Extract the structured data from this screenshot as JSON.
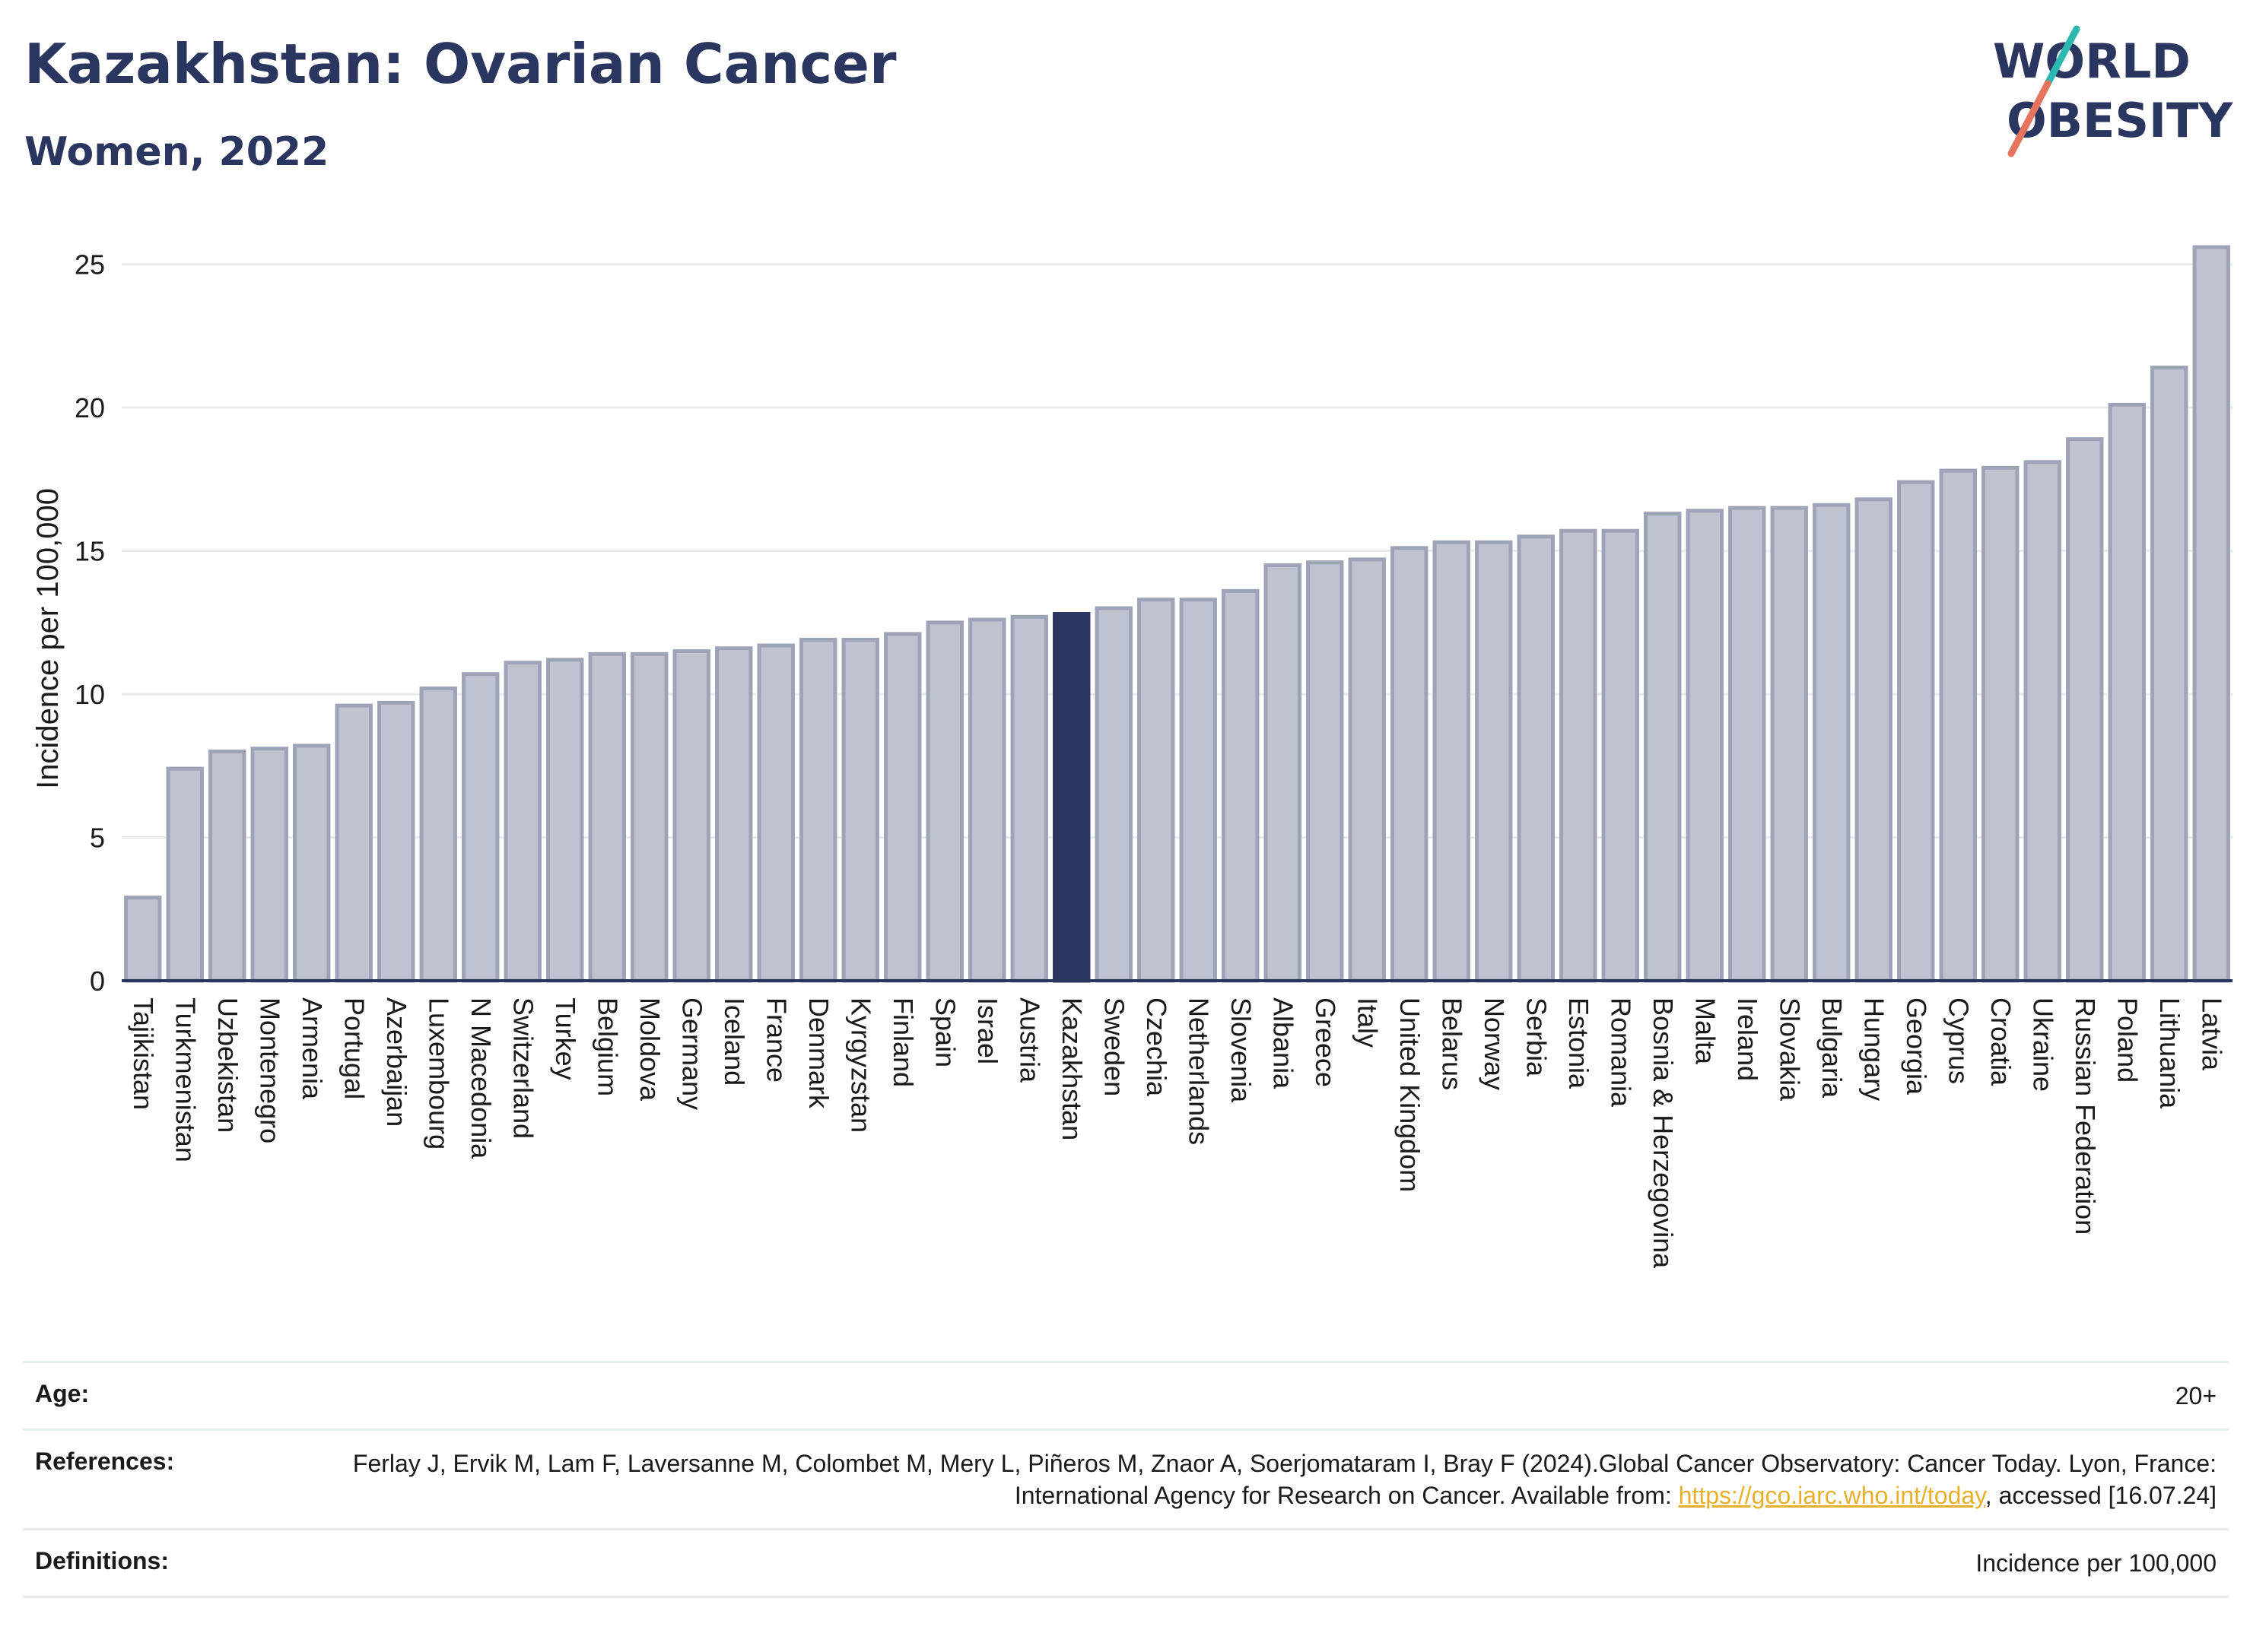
{
  "header": {
    "title": "Kazakhstan: Ovarian Cancer",
    "subtitle": "Women, 2022"
  },
  "logo": {
    "line1": "WORLD",
    "line2": "OBESITY",
    "colors": {
      "text": "#2a365f",
      "slash_top": "#2ab8b0",
      "slash_bottom": "#e5735d"
    }
  },
  "colors": {
    "bar_fill": "#bfc3d1",
    "bar_stroke": "#9ea3b8",
    "highlight": "#2a365f",
    "grid": "#e9ecea",
    "axis": "#2a365f"
  },
  "chart_data": {
    "type": "bar",
    "ylabel": "Incidence per 100,000",
    "xlabel": "",
    "ylim": [
      0,
      26
    ],
    "yticks": [
      0,
      5,
      10,
      15,
      20,
      25
    ],
    "highlight": "Kazakhstan",
    "categories": [
      "Tajikistan",
      "Turkmenistan",
      "Uzbekistan",
      "Montenegro",
      "Armenia",
      "Portugal",
      "Azerbaijan",
      "Luxembourg",
      "N Macedonia",
      "Switzerland",
      "Turkey",
      "Belgium",
      "Moldova",
      "Germany",
      "Iceland",
      "France",
      "Denmark",
      "Kyrgyzstan",
      "Finland",
      "Spain",
      "Israel",
      "Austria",
      "Kazakhstan",
      "Sweden",
      "Czechia",
      "Netherlands",
      "Slovenia",
      "Albania",
      "Greece",
      "Italy",
      "United Kingdom",
      "Belarus",
      "Norway",
      "Serbia",
      "Estonia",
      "Romania",
      "Bosnia & Herzegovina",
      "Malta",
      "Ireland",
      "Slovakia",
      "Bulgaria",
      "Hungary",
      "Georgia",
      "Cyprus",
      "Croatia",
      "Ukraine",
      "Russian Federation",
      "Poland",
      "Lithuania",
      "Latvia"
    ],
    "values": [
      2.9,
      7.4,
      8.0,
      8.1,
      8.2,
      9.6,
      9.7,
      10.2,
      10.7,
      11.1,
      11.2,
      11.4,
      11.4,
      11.5,
      11.6,
      11.7,
      11.9,
      11.9,
      12.1,
      12.5,
      12.6,
      12.7,
      12.8,
      13.0,
      13.3,
      13.3,
      13.6,
      14.5,
      14.6,
      14.7,
      15.1,
      15.3,
      15.3,
      15.5,
      15.7,
      15.7,
      16.3,
      16.4,
      16.5,
      16.5,
      16.6,
      16.8,
      17.4,
      17.8,
      17.9,
      18.1,
      18.9,
      20.1,
      21.4,
      25.6
    ]
  },
  "footer": {
    "age_label": "Age:",
    "age_value": "20+",
    "references_label": "References:",
    "references_text_1": "Ferlay J, Ervik M, Lam F, Laversanne M, Colombet M, Mery L, Piñeros M, Znaor A, Soerjomataram I, Bray F (2024).Global Cancer Observatory: Cancer Today. Lyon, France: International Agency for Research on Cancer. Available from: ",
    "references_link": "https://gco.iarc.who.int/today",
    "references_text_2": ", accessed [16.07.24]",
    "definitions_label": "Definitions:",
    "definitions_value": "Incidence per 100,000"
  }
}
